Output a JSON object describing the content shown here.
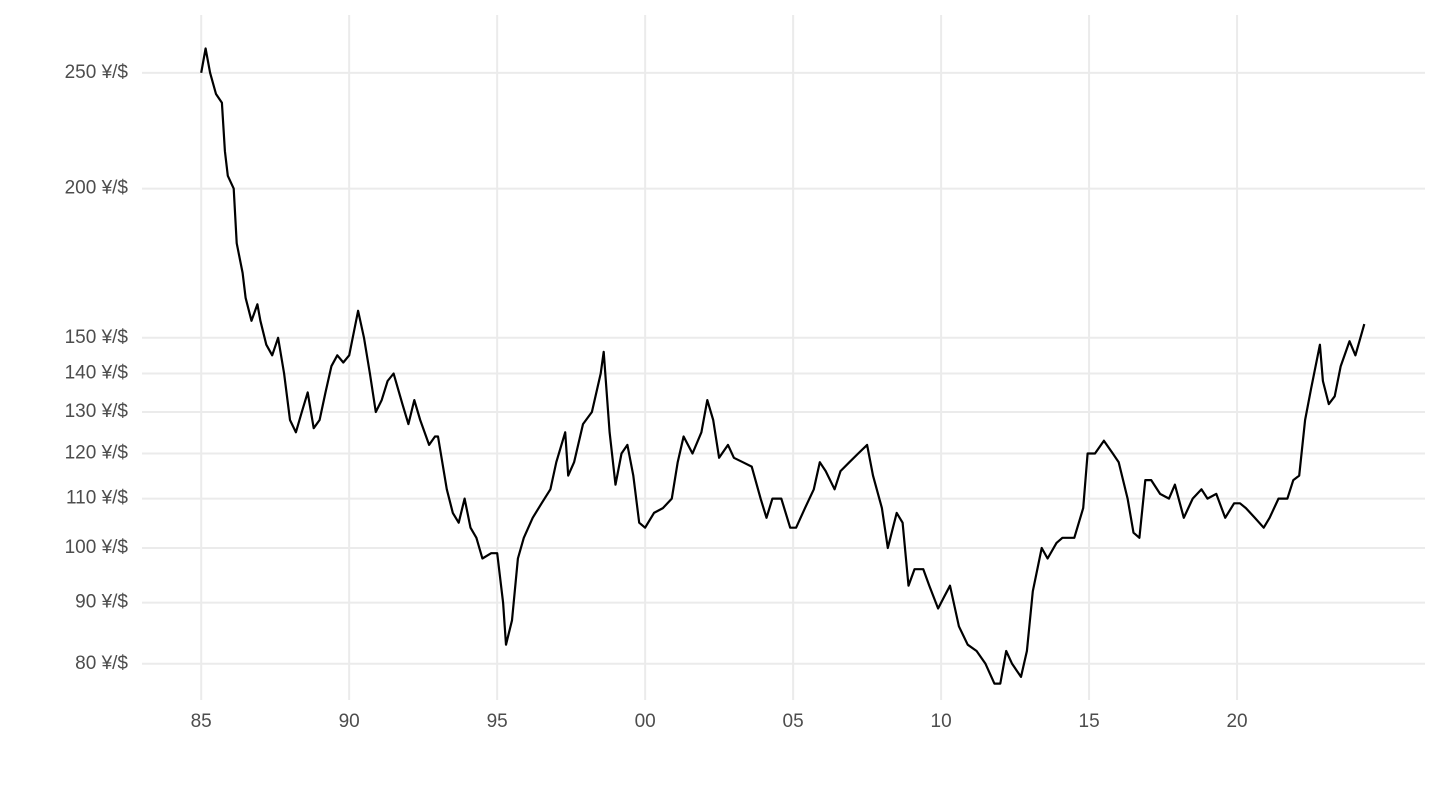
{
  "chart_data": {
    "type": "line",
    "log_scale_y": true,
    "grid": true,
    "x": [
      1985.0,
      1985.15,
      1985.3,
      1985.5,
      1985.7,
      1985.8,
      1985.9,
      1986.1,
      1986.2,
      1986.4,
      1986.5,
      1986.7,
      1986.9,
      1987.0,
      1987.2,
      1987.4,
      1987.6,
      1987.8,
      1988.0,
      1988.2,
      1988.4,
      1988.6,
      1988.8,
      1989.0,
      1989.2,
      1989.4,
      1989.6,
      1989.8,
      1990.0,
      1990.3,
      1990.5,
      1990.7,
      1990.9,
      1991.1,
      1991.3,
      1991.5,
      1991.8,
      1992.0,
      1992.2,
      1992.4,
      1992.7,
      1992.9,
      1993.0,
      1993.3,
      1993.5,
      1993.7,
      1993.9,
      1994.1,
      1994.3,
      1994.5,
      1994.8,
      1995.0,
      1995.2,
      1995.3,
      1995.5,
      1995.7,
      1995.9,
      1996.2,
      1996.5,
      1996.8,
      1997.0,
      1997.3,
      1997.4,
      1997.6,
      1997.9,
      1998.2,
      1998.5,
      1998.6,
      1998.8,
      1999.0,
      1999.2,
      1999.4,
      1999.6,
      1999.8,
      2000.0,
      2000.3,
      2000.6,
      2000.9,
      2001.1,
      2001.3,
      2001.6,
      2001.9,
      2002.1,
      2002.3,
      2002.5,
      2002.8,
      2003.0,
      2003.3,
      2003.6,
      2003.9,
      2004.1,
      2004.3,
      2004.6,
      2004.9,
      2005.1,
      2005.4,
      2005.7,
      2005.9,
      2006.1,
      2006.4,
      2006.6,
      2006.9,
      2007.2,
      2007.5,
      2007.7,
      2008.0,
      2008.2,
      2008.5,
      2008.7,
      2008.9,
      2009.1,
      2009.4,
      2009.6,
      2009.9,
      2010.1,
      2010.3,
      2010.6,
      2010.9,
      2011.2,
      2011.5,
      2011.8,
      2012.0,
      2012.2,
      2012.4,
      2012.7,
      2012.9,
      2013.1,
      2013.4,
      2013.6,
      2013.9,
      2014.1,
      2014.5,
      2014.8,
      2014.95,
      2015.2,
      2015.5,
      2015.8,
      2016.0,
      2016.3,
      2016.5,
      2016.7,
      2016.9,
      2017.1,
      2017.4,
      2017.7,
      2017.9,
      2018.2,
      2018.5,
      2018.8,
      2019.0,
      2019.3,
      2019.6,
      2019.9,
      2020.1,
      2020.3,
      2020.6,
      2020.9,
      2021.1,
      2021.4,
      2021.7,
      2021.9,
      2022.1,
      2022.3,
      2022.5,
      2022.8,
      2022.9,
      2023.1,
      2023.3,
      2023.5,
      2023.8,
      2024.0,
      2024.2,
      2024.3
    ],
    "series": [
      {
        "color": "#000000",
        "values": [
          250,
          262,
          250,
          240,
          236,
          215,
          205,
          200,
          180,
          170,
          162,
          155,
          160,
          155,
          148,
          145,
          150,
          140,
          128,
          125,
          130,
          135,
          126,
          128,
          135,
          142,
          145,
          143,
          145,
          158,
          150,
          140,
          130,
          133,
          138,
          140,
          132,
          127,
          133,
          128,
          122,
          124,
          124,
          112,
          107,
          105,
          110,
          104,
          102,
          98,
          99,
          99,
          90,
          83,
          87,
          98,
          102,
          106,
          109,
          112,
          118,
          125,
          115,
          118,
          127,
          130,
          140,
          146,
          125,
          113,
          120,
          122,
          115,
          105,
          104,
          107,
          108,
          110,
          118,
          124,
          120,
          125,
          133,
          128,
          119,
          122,
          119,
          118,
          117,
          110,
          106,
          110,
          110,
          104,
          104,
          108,
          112,
          118,
          116,
          112,
          116,
          118,
          120,
          122,
          115,
          108,
          100,
          107,
          105,
          93,
          96,
          96,
          93,
          89,
          91,
          93,
          86,
          83,
          82,
          80,
          77,
          77,
          82,
          80,
          78,
          82,
          92,
          100,
          98,
          101,
          102,
          102,
          108,
          120,
          120,
          123,
          120,
          118,
          110,
          103,
          102,
          114,
          114,
          111,
          110,
          113,
          106,
          110,
          112,
          110,
          111,
          106,
          109,
          109,
          108,
          106,
          104,
          106,
          110,
          110,
          114,
          115,
          128,
          136,
          148,
          138,
          132,
          134,
          142,
          149,
          145,
          151,
          154
        ]
      }
    ],
    "xlim": [
      1983.0,
      2026.35
    ],
    "xticks": [
      {
        "value": 1985,
        "label": "85"
      },
      {
        "value": 1990,
        "label": "90"
      },
      {
        "value": 1995,
        "label": "95"
      },
      {
        "value": 2000,
        "label": "00"
      },
      {
        "value": 2005,
        "label": "05"
      },
      {
        "value": 2010,
        "label": "10"
      },
      {
        "value": 2015,
        "label": "15"
      },
      {
        "value": 2020,
        "label": "20"
      }
    ],
    "ylim": [
      74.6,
      279.5
    ],
    "yticks": [
      {
        "value": 80,
        "label": "80 ¥/$"
      },
      {
        "value": 90,
        "label": "90 ¥/$"
      },
      {
        "value": 100,
        "label": "100 ¥/$"
      },
      {
        "value": 110,
        "label": "110 ¥/$"
      },
      {
        "value": 120,
        "label": "120 ¥/$"
      },
      {
        "value": 130,
        "label": "130 ¥/$"
      },
      {
        "value": 140,
        "label": "140 ¥/$"
      },
      {
        "value": 150,
        "label": "150 ¥/$"
      },
      {
        "value": 200,
        "label": "200 ¥/$"
      },
      {
        "value": 250,
        "label": "250 ¥/$"
      }
    ]
  }
}
